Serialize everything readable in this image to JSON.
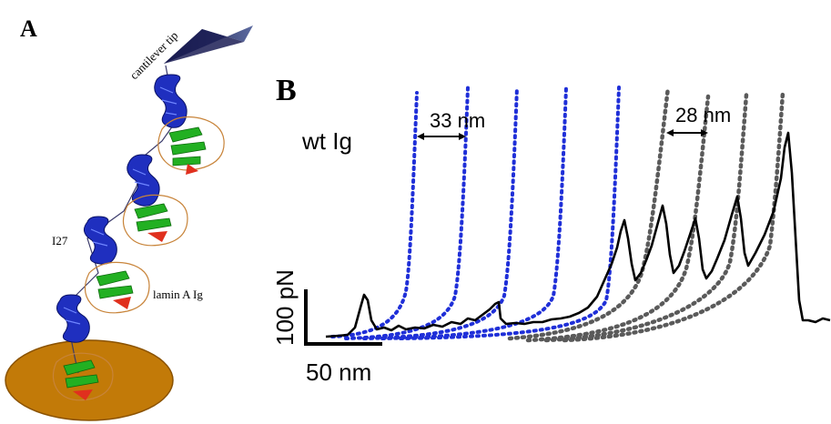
{
  "panel_a": {
    "letter": "A",
    "labels": {
      "tip": "cantilever tip",
      "i27": "I27",
      "lamin": "lamin A Ig"
    },
    "colors": {
      "i27_domain": "#1f2fbf",
      "ig_green": "#22b022",
      "ig_red": "#e0301e",
      "ig_loop": "#c8843a",
      "surface": "#c27a08",
      "tip_dark": "#1b1d55"
    }
  },
  "panel_b": {
    "letter": "B",
    "title": "wt Ig",
    "annotations": {
      "left_spacing": "33 nm",
      "right_spacing": "28 nm"
    },
    "scale_bar": {
      "force_label": "100 pN",
      "distance_label": "50 nm"
    },
    "colors": {
      "trace": "#000000",
      "fit_blue": "#1f2fd8",
      "fit_gray": "#5a5a5a"
    }
  }
}
